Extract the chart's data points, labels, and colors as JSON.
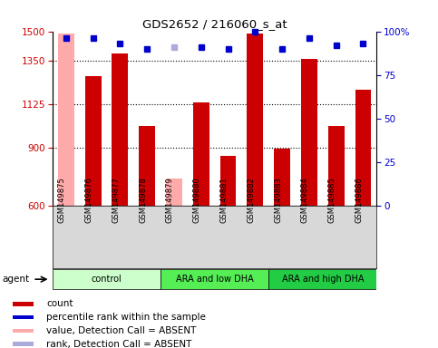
{
  "title": "GDS2652 / 216060_s_at",
  "samples": [
    "GSM149875",
    "GSM149876",
    "GSM149877",
    "GSM149878",
    "GSM149879",
    "GSM149880",
    "GSM149881",
    "GSM149882",
    "GSM149883",
    "GSM149884",
    "GSM149885",
    "GSM149886"
  ],
  "count_values": [
    null,
    1270,
    1385,
    1010,
    null,
    1130,
    855,
    1490,
    895,
    1355,
    1010,
    1200
  ],
  "count_absent": [
    1490,
    null,
    null,
    null,
    740,
    null,
    null,
    null,
    null,
    null,
    null,
    null
  ],
  "percentile_values": [
    96,
    96,
    93,
    90,
    null,
    91,
    90,
    100,
    90,
    96,
    92,
    93
  ],
  "percentile_absent": [
    null,
    null,
    null,
    null,
    91,
    null,
    null,
    null,
    null,
    null,
    null,
    null
  ],
  "groups": [
    {
      "label": "control",
      "start": 0,
      "end": 3,
      "color": "#ccffcc"
    },
    {
      "label": "ARA and low DHA",
      "start": 4,
      "end": 7,
      "color": "#55ee55"
    },
    {
      "label": "ARA and high DHA",
      "start": 8,
      "end": 11,
      "color": "#22cc44"
    }
  ],
  "ylim_left": [
    600,
    1500
  ],
  "ylim_right": [
    0,
    100
  ],
  "yticks_left": [
    600,
    900,
    1125,
    1350,
    1500
  ],
  "yticks_right": [
    0,
    25,
    50,
    75,
    100
  ],
  "bar_color": "#cc0000",
  "bar_absent_color": "#ffaaaa",
  "dot_color": "#0000cc",
  "dot_absent_color": "#aaaadd",
  "bg_color": "#ffffff",
  "grid_color": "#000000",
  "tick_label_color_left": "#cc0000",
  "tick_label_color_right": "#0000cc",
  "legend": [
    {
      "label": "count",
      "color": "#cc0000"
    },
    {
      "label": "percentile rank within the sample",
      "color": "#0000cc"
    },
    {
      "label": "value, Detection Call = ABSENT",
      "color": "#ffaaaa"
    },
    {
      "label": "rank, Detection Call = ABSENT",
      "color": "#aaaadd"
    }
  ],
  "bar_width": 0.6,
  "gridlines": [
    900,
    1125,
    1350
  ]
}
